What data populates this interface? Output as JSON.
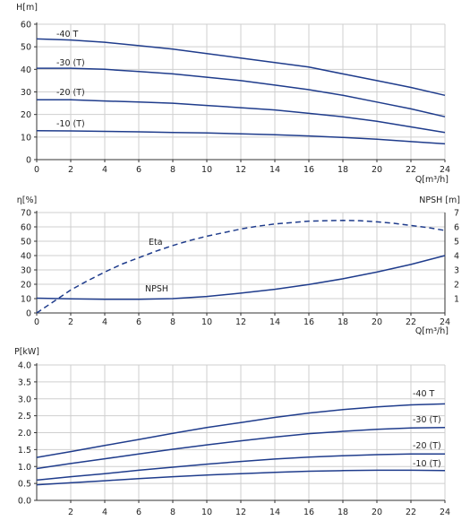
{
  "chart_data": [
    {
      "type": "line",
      "ylabel": "H[m]",
      "xlabel": "Q[m³/h]",
      "xlim": [
        0,
        24
      ],
      "ylim": [
        0,
        60
      ],
      "xticks": [
        0,
        2,
        4,
        6,
        8,
        10,
        12,
        14,
        16,
        18,
        20,
        22,
        24
      ],
      "yticks": [
        0,
        10,
        20,
        30,
        40,
        50,
        60
      ],
      "grid": true,
      "series": [
        {
          "name": "-40 T",
          "color": "#1f3c8c",
          "x": [
            0,
            2,
            4,
            6,
            8,
            10,
            12,
            14,
            16,
            18,
            20,
            22,
            24
          ],
          "y": [
            53.5,
            53,
            52,
            50.5,
            49,
            47,
            45,
            43,
            41,
            38,
            35,
            32,
            28.5
          ]
        },
        {
          "name": "-30 (T)",
          "color": "#1f3c8c",
          "x": [
            0,
            2,
            4,
            6,
            8,
            10,
            12,
            14,
            16,
            18,
            20,
            22,
            24
          ],
          "y": [
            40.5,
            40.5,
            40,
            39,
            38,
            36.5,
            35,
            33,
            31,
            28.5,
            25.5,
            22.5,
            19
          ]
        },
        {
          "name": "-20 (T)",
          "color": "#1f3c8c",
          "x": [
            0,
            2,
            4,
            6,
            8,
            10,
            12,
            14,
            16,
            18,
            20,
            22,
            24
          ],
          "y": [
            26.5,
            26.5,
            26,
            25.5,
            25,
            24,
            23,
            22,
            20.5,
            19,
            17,
            14.5,
            12
          ]
        },
        {
          "name": "-10 (T)",
          "color": "#1f3c8c",
          "x": [
            0,
            2,
            4,
            6,
            8,
            10,
            12,
            14,
            16,
            18,
            20,
            22,
            24
          ],
          "y": [
            12.8,
            12.7,
            12.5,
            12.3,
            12,
            11.8,
            11.4,
            11,
            10.5,
            9.8,
            9,
            8,
            7
          ]
        }
      ]
    },
    {
      "type": "line",
      "ylabel": "η[%]",
      "ylabel_right": "NPSH [m]",
      "xlabel": "Q[m³/h]",
      "xlim": [
        0,
        24
      ],
      "ylim": [
        0,
        70
      ],
      "ylim_right": [
        0,
        7
      ],
      "xticks": [
        0,
        2,
        4,
        6,
        8,
        10,
        12,
        14,
        16,
        18,
        20,
        22,
        24
      ],
      "yticks": [
        0,
        10,
        20,
        30,
        40,
        50,
        60,
        70
      ],
      "yticks_right": [
        1,
        2,
        3,
        4,
        5,
        6,
        7
      ],
      "grid": true,
      "series": [
        {
          "name": "Eta",
          "axis": "left",
          "dashed": true,
          "color": "#1f3c8c",
          "x": [
            0,
            1,
            2,
            3,
            4,
            5,
            6,
            7,
            8,
            9,
            10,
            11,
            12,
            13,
            14,
            15,
            16,
            17,
            18,
            19,
            20,
            21,
            22,
            23,
            24
          ],
          "y": [
            0,
            8,
            16,
            22.5,
            28.5,
            34,
            38.5,
            43,
            47,
            50.5,
            53.5,
            56,
            58.5,
            60.5,
            62,
            63,
            64,
            64.3,
            64.5,
            64.3,
            63.5,
            62.5,
            61,
            59.5,
            57.5
          ]
        },
        {
          "name": "NPSH",
          "axis": "right",
          "dashed": false,
          "color": "#1f3c8c",
          "x": [
            0,
            2,
            4,
            6,
            8,
            10,
            12,
            14,
            16,
            18,
            20,
            22,
            24
          ],
          "y": [
            1.03,
            0.98,
            0.95,
            0.95,
            1.0,
            1.15,
            1.38,
            1.65,
            1.98,
            2.38,
            2.85,
            3.38,
            4.0
          ]
        }
      ]
    },
    {
      "type": "line",
      "ylabel": "P[kW]",
      "xlabel": "",
      "xlim": [
        0,
        24
      ],
      "ylim": [
        0,
        4.0
      ],
      "xticks": [
        2,
        4,
        6,
        8,
        10,
        12,
        14,
        16,
        18,
        20,
        22,
        24
      ],
      "yticks": [
        0.0,
        0.5,
        1.0,
        1.5,
        2.0,
        2.5,
        3.0,
        3.5,
        4.0
      ],
      "grid": true,
      "series": [
        {
          "name": "-40 T",
          "color": "#1f3c8c",
          "x": [
            0,
            2,
            4,
            6,
            8,
            10,
            12,
            14,
            16,
            18,
            20,
            22,
            24
          ],
          "y": [
            1.27,
            1.44,
            1.62,
            1.8,
            1.98,
            2.15,
            2.3,
            2.45,
            2.58,
            2.68,
            2.76,
            2.82,
            2.85
          ]
        },
        {
          "name": "-30 (T)",
          "color": "#1f3c8c",
          "x": [
            0,
            2,
            4,
            6,
            8,
            10,
            12,
            14,
            16,
            18,
            20,
            22,
            24
          ],
          "y": [
            0.94,
            1.09,
            1.23,
            1.37,
            1.51,
            1.64,
            1.76,
            1.87,
            1.97,
            2.04,
            2.1,
            2.14,
            2.15
          ]
        },
        {
          "name": "-20 (T)",
          "color": "#1f3c8c",
          "x": [
            0,
            2,
            4,
            6,
            8,
            10,
            12,
            14,
            16,
            18,
            20,
            22,
            24
          ],
          "y": [
            0.6,
            0.7,
            0.79,
            0.89,
            0.98,
            1.07,
            1.15,
            1.22,
            1.28,
            1.32,
            1.35,
            1.37,
            1.37
          ]
        },
        {
          "name": "-10 (T)",
          "color": "#1f3c8c",
          "x": [
            0,
            2,
            4,
            6,
            8,
            10,
            12,
            14,
            16,
            18,
            20,
            22,
            24
          ],
          "y": [
            0.46,
            0.52,
            0.58,
            0.64,
            0.7,
            0.75,
            0.79,
            0.83,
            0.86,
            0.88,
            0.89,
            0.89,
            0.88
          ]
        }
      ]
    }
  ]
}
